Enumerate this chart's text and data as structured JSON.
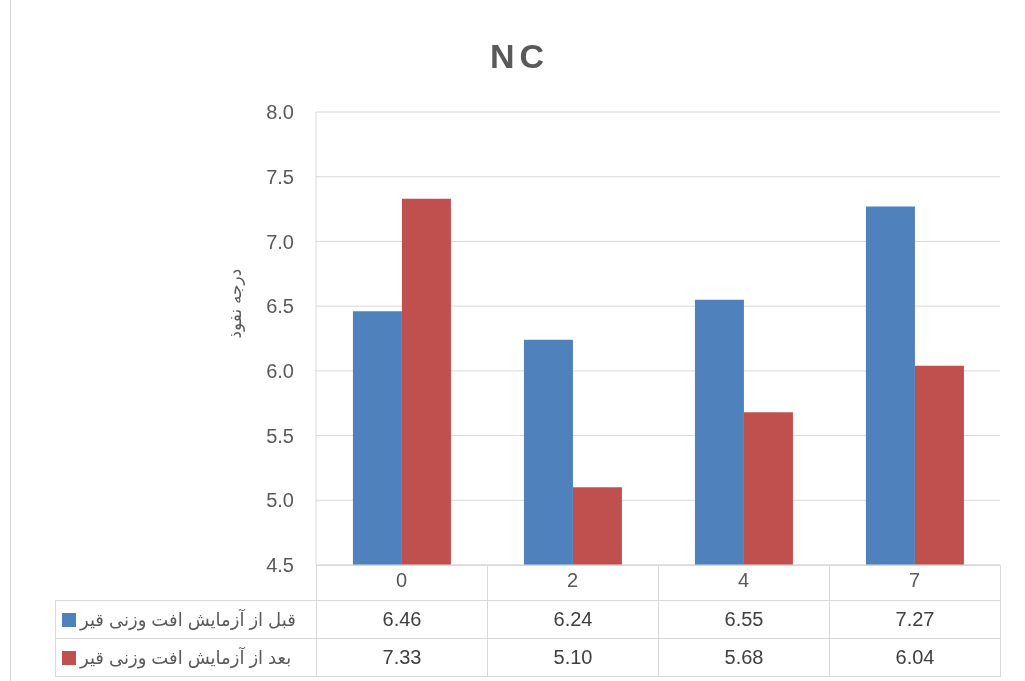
{
  "chart_data": {
    "type": "bar",
    "title": "NC",
    "ylabel": "درجه نفوذ",
    "categories": [
      "0",
      "2",
      "4",
      "7"
    ],
    "series": [
      {
        "name": "قبل از آزمایش افت وزنی قیر",
        "color": "#4f81bd",
        "values": [
          6.46,
          6.24,
          6.55,
          7.27
        ],
        "value_labels": [
          "6.46",
          "6.24",
          "6.55",
          "7.27"
        ]
      },
      {
        "name": "بعد از آزمایش افت وزنی قیر",
        "color": "#c0504d",
        "values": [
          7.33,
          5.1,
          5.68,
          6.04
        ],
        "value_labels": [
          "7.33",
          "5.10",
          "5.68",
          "6.04"
        ]
      }
    ],
    "ylim": [
      4.5,
      8.0
    ],
    "yticks": [
      4.5,
      {
        "value": 5,
        "label": "5.0"
      },
      5.5,
      {
        "value": 6,
        "label": "6.0"
      },
      6.5,
      {
        "value": 7,
        "label": "7.0"
      },
      7.5,
      {
        "value": 8,
        "label": "8.0"
      }
    ],
    "grid": "y",
    "legend": "bottom left"
  }
}
